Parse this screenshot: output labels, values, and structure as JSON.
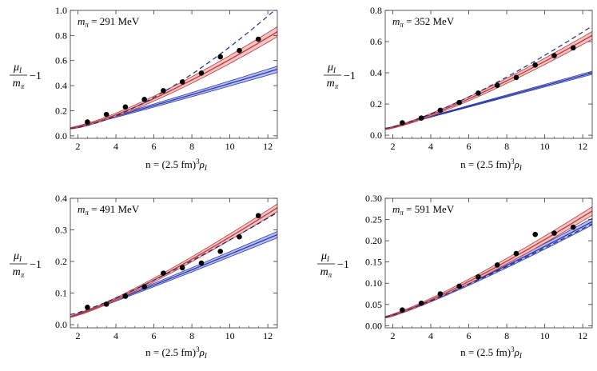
{
  "chart_data": [
    {
      "type": "line",
      "mass_label": "m_π = 291 MeV",
      "mass_value": "291 MeV",
      "xlabel": "n = (2.5 fm)³ ρ_I",
      "ylabel": "μ_I / m_π − 1",
      "xlim": [
        1.6,
        12.5
      ],
      "ylim": [
        -0.02,
        1.0
      ],
      "xticks": [
        2,
        4,
        6,
        8,
        10,
        12
      ],
      "yticks": [
        0.0,
        0.2,
        0.4,
        0.6,
        0.8,
        1.0
      ],
      "points": {
        "x": [
          2.5,
          3.5,
          4.5,
          5.5,
          6.5,
          7.5,
          8.5,
          9.5,
          10.5,
          11.5
        ],
        "y": [
          0.11,
          0.17,
          0.23,
          0.29,
          0.36,
          0.43,
          0.5,
          0.63,
          0.68,
          0.77
        ]
      },
      "red_band": {
        "x": [
          1.6,
          12.5
        ],
        "y": [
          0.06,
          0.83
        ],
        "power": 1.3,
        "width": [
          0.006,
          0.04
        ]
      },
      "blue_band": {
        "x": [
          1.6,
          12.5
        ],
        "y": [
          0.06,
          0.53
        ],
        "power": 1.05,
        "width": [
          0.004,
          0.025
        ]
      },
      "dashed": {
        "x": [
          1.6,
          12.5
        ],
        "y": [
          0.06,
          1.02
        ],
        "power": 1.5
      }
    },
    {
      "type": "line",
      "mass_label": "m_π = 352 MeV",
      "mass_value": "352 MeV",
      "xlabel": "n = (2.5 fm)³ ρ_I",
      "ylabel": "μ_I / m_π − 1",
      "xlim": [
        1.6,
        12.5
      ],
      "ylim": [
        -0.02,
        0.8
      ],
      "xticks": [
        2,
        4,
        6,
        8,
        10,
        12
      ],
      "yticks": [
        0.0,
        0.2,
        0.4,
        0.6,
        0.8
      ],
      "points": {
        "x": [
          2.5,
          3.5,
          4.5,
          5.5,
          6.5,
          7.5,
          8.5,
          9.5,
          10.5,
          11.5
        ],
        "y": [
          0.08,
          0.11,
          0.16,
          0.21,
          0.27,
          0.32,
          0.37,
          0.45,
          0.51,
          0.56
        ]
      },
      "red_band": {
        "x": [
          1.6,
          12.5
        ],
        "y": [
          0.04,
          0.64
        ],
        "power": 1.25,
        "width": [
          0.004,
          0.025
        ]
      },
      "blue_band": {
        "x": [
          1.6,
          12.5
        ],
        "y": [
          0.04,
          0.4
        ],
        "power": 1.0,
        "width": [
          0.002,
          0.01
        ]
      },
      "dashed": {
        "x": [
          1.6,
          12.5
        ],
        "y": [
          0.045,
          0.7
        ],
        "power": 1.3
      }
    },
    {
      "type": "line",
      "mass_label": "m_π = 491 MeV",
      "mass_value": "491 MeV",
      "xlabel": "n = (2.5 fm)³ ρ_I",
      "ylabel": "μ_I / m_π − 1",
      "xlim": [
        1.6,
        12.5
      ],
      "ylim": [
        -0.01,
        0.4
      ],
      "xticks": [
        2,
        4,
        6,
        8,
        10,
        12
      ],
      "yticks": [
        0.0,
        0.1,
        0.2,
        0.3,
        0.4
      ],
      "points": {
        "x": [
          2.5,
          3.5,
          4.5,
          5.5,
          6.5,
          7.5,
          8.5,
          9.5,
          10.5,
          11.5
        ],
        "y": [
          0.055,
          0.065,
          0.09,
          0.12,
          0.163,
          0.18,
          0.195,
          0.232,
          0.278,
          0.345
        ]
      },
      "red_band": {
        "x": [
          1.6,
          12.5
        ],
        "y": [
          0.025,
          0.37
        ],
        "power": 1.2,
        "width": [
          0.002,
          0.012
        ]
      },
      "blue_band": {
        "x": [
          1.6,
          12.5
        ],
        "y": [
          0.025,
          0.285
        ],
        "power": 1.05,
        "width": [
          0.002,
          0.01
        ]
      },
      "dashed": {
        "x": [
          1.6,
          12.5
        ],
        "y": [
          0.032,
          0.355
        ],
        "power": 1.2
      }
    },
    {
      "type": "line",
      "mass_label": "m_π = 591 MeV",
      "mass_value": "591 MeV",
      "xlabel": "n = (2.5 fm)³ ρ_I",
      "ylabel": "μ_I / m_π − 1",
      "xlim": [
        1.6,
        12.5
      ],
      "ylim": [
        -0.005,
        0.3
      ],
      "xticks": [
        2,
        4,
        6,
        8,
        10,
        12
      ],
      "yticks": [
        0.0,
        0.05,
        0.1,
        0.15,
        0.2,
        0.25,
        0.3
      ],
      "ytick_labels": [
        "0.00",
        "0.05",
        "0.10",
        "0.15",
        "0.20",
        "0.25",
        "0.30"
      ],
      "points": {
        "x": [
          2.5,
          3.5,
          4.5,
          5.5,
          6.5,
          7.5,
          8.5,
          9.5,
          10.5,
          11.5
        ],
        "y": [
          0.037,
          0.053,
          0.075,
          0.093,
          0.115,
          0.143,
          0.17,
          0.215,
          0.218,
          0.232
        ]
      },
      "red_band": {
        "x": [
          1.6,
          12.5
        ],
        "y": [
          0.02,
          0.27
        ],
        "power": 1.2,
        "width": [
          0.002,
          0.01
        ]
      },
      "blue_band": {
        "x": [
          1.6,
          12.5
        ],
        "y": [
          0.02,
          0.245
        ],
        "power": 1.15,
        "width": [
          0.002,
          0.008
        ]
      },
      "dashed": {
        "x": [
          1.6,
          12.5
        ],
        "y": [
          0.02,
          0.24
        ],
        "power": 1.15
      }
    }
  ],
  "colors": {
    "red_band_fill": "#f4b8b8",
    "red_line": "#b83a3a",
    "blue_band_fill": "#aab2ee",
    "blue_line": "#2a37a8",
    "dashed": "#1e2a88",
    "points": "#000000",
    "axes": "#333333"
  }
}
